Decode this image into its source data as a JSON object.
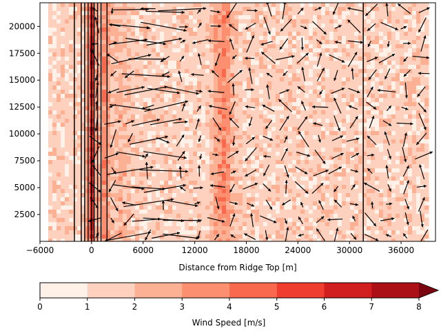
{
  "chart_data": {
    "type": "contourf+quiver",
    "xlabel": "Distance from Ridge Top [m]",
    "ylabel": "",
    "xlim": [
      -6000,
      40000
    ],
    "ylim": [
      0,
      22200
    ],
    "x_ticks": [
      -6000,
      0,
      6000,
      12000,
      18000,
      24000,
      30000,
      36000
    ],
    "y_ticks": [
      2500,
      5000,
      7500,
      10000,
      12500,
      15000,
      17500,
      20000
    ],
    "vertical_lines_x": [
      -2000,
      -1200,
      -800,
      -400,
      0,
      300,
      700,
      1100,
      1800,
      31600
    ],
    "field": {
      "baseline_level": 1.5,
      "features": [
        {
          "x_center": 0,
          "width": 400,
          "amplitude": 4.5
        },
        {
          "x_center": 1500,
          "width": 600,
          "amplitude": 2.0
        },
        {
          "x_center": 3500,
          "width": 900,
          "amplitude": 0.9
        },
        {
          "x_center": 15500,
          "width": 1000,
          "amplitude": 2.0
        },
        {
          "x_center": 14500,
          "width": 600,
          "amplitude": 0.6
        }
      ]
    },
    "colorbar": {
      "label": "Wind Speed [m/s]",
      "levels": [
        0,
        1,
        2,
        3,
        4,
        5,
        6,
        7,
        8
      ],
      "colors": [
        "#fff0e8",
        "#fdd1bd",
        "#fcb194",
        "#fc8f6f",
        "#f9694d",
        "#ef3d2f",
        "#d11e1f",
        "#ab1016",
        "#7a0510"
      ],
      "extend": "max"
    },
    "quiver": {
      "x_step": 2000,
      "y_step": 1500,
      "x_start": 500,
      "y_start": 500,
      "long_arrow_x_range": [
        4000,
        12000
      ],
      "color": "#000000"
    }
  }
}
